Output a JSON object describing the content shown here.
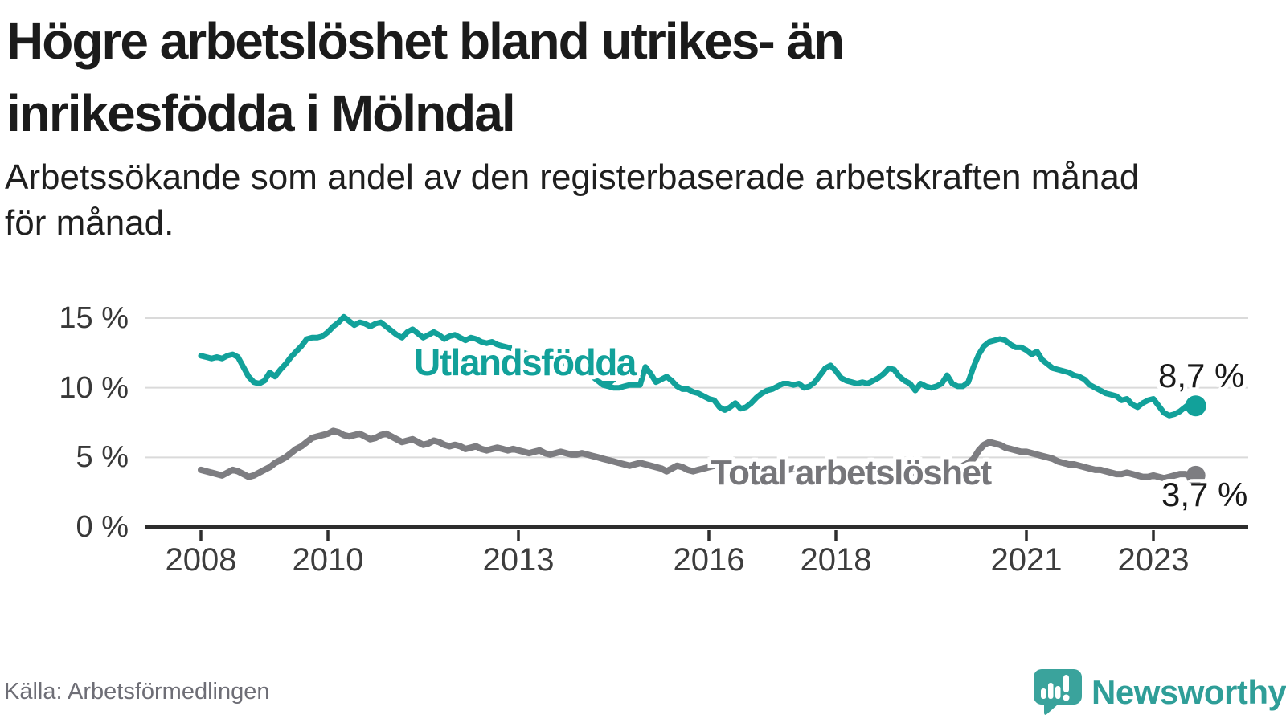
{
  "header": {
    "title_lines": [
      "Högre arbetslöshet bland utrikes- än",
      "inrikesfödda i Mölndal"
    ],
    "subtitle_lines": [
      "Arbetssökande som andel av den registerbaserade arbetskraften månad",
      "för månad."
    ]
  },
  "chart_data": {
    "type": "line",
    "title": "Högre arbetslöshet bland utrikes- än inrikesfödda i Mölndal",
    "subtitle": "Arbetssökande som andel av den registerbaserade arbetskraften månad för månad.",
    "unit": "%",
    "frequency": "monthly",
    "x_start": "2008-01",
    "x_end": "2023-09",
    "xticks": [
      2008,
      2010,
      2013,
      2016,
      2018,
      2021,
      2023
    ],
    "ylim": [
      0,
      16
    ],
    "yticks": {
      "values": [
        0,
        5,
        10,
        15
      ],
      "labels": [
        "0 %",
        "5 %",
        "10 %",
        "15 %"
      ]
    },
    "grid": "horizontal",
    "legend_position": "inline-labels",
    "colors": {
      "grid": "#dadada",
      "axis": "#2d2d2d"
    },
    "series": [
      {
        "name": "Utlandsfödda",
        "color": "#12a19a",
        "end_label": "8,7 %",
        "end_value": 8.7,
        "values": [
          12.3,
          12.2,
          12.1,
          12.2,
          12.1,
          12.3,
          12.4,
          12.2,
          11.5,
          10.8,
          10.4,
          10.3,
          10.5,
          11.1,
          10.8,
          11.3,
          11.7,
          12.2,
          12.6,
          13.0,
          13.5,
          13.6,
          13.6,
          13.7,
          14.0,
          14.4,
          14.7,
          15.1,
          14.8,
          14.5,
          14.7,
          14.6,
          14.4,
          14.6,
          14.7,
          14.4,
          14.1,
          13.8,
          13.6,
          14.0,
          14.2,
          13.9,
          13.6,
          13.8,
          14.0,
          13.8,
          13.5,
          13.7,
          13.8,
          13.6,
          13.4,
          13.6,
          13.5,
          13.3,
          13.2,
          13.3,
          13.1,
          13.0,
          12.9,
          12.8,
          12.7,
          12.5,
          12.4,
          12.3,
          12.2,
          12.1,
          12.0,
          11.9,
          11.8,
          11.7,
          11.6,
          11.5,
          11.3,
          11.0,
          10.8,
          10.5,
          10.2,
          10.1,
          10.0,
          10.0,
          10.1,
          10.2,
          10.2,
          10.2,
          11.5,
          11.0,
          10.4,
          10.6,
          10.8,
          10.5,
          10.1,
          9.9,
          9.9,
          9.7,
          9.6,
          9.4,
          9.2,
          9.1,
          8.6,
          8.4,
          8.6,
          8.9,
          8.5,
          8.6,
          8.9,
          9.3,
          9.6,
          9.8,
          9.9,
          10.1,
          10.3,
          10.3,
          10.2,
          10.3,
          10.0,
          10.1,
          10.4,
          10.9,
          11.4,
          11.6,
          11.2,
          10.7,
          10.5,
          10.4,
          10.3,
          10.4,
          10.3,
          10.5,
          10.7,
          11.0,
          11.4,
          11.3,
          10.8,
          10.5,
          10.3,
          9.8,
          10.3,
          10.1,
          10.0,
          10.1,
          10.3,
          10.9,
          10.3,
          10.1,
          10.1,
          10.4,
          11.5,
          12.4,
          13.0,
          13.3,
          13.4,
          13.5,
          13.4,
          13.1,
          12.9,
          12.9,
          12.7,
          12.4,
          12.6,
          12.0,
          11.7,
          11.4,
          11.3,
          11.2,
          11.1,
          10.9,
          10.8,
          10.6,
          10.2,
          10.0,
          9.8,
          9.6,
          9.5,
          9.4,
          9.1,
          9.2,
          8.8,
          8.6,
          8.9,
          9.1,
          9.2,
          8.7,
          8.2,
          8.0,
          8.1,
          8.3,
          8.6,
          8.9,
          8.7
        ]
      },
      {
        "name": "Total arbetslöshet",
        "color": "#7d7d81",
        "end_label": "3,7 %",
        "end_value": 3.7,
        "values": [
          4.1,
          4.0,
          3.9,
          3.8,
          3.7,
          3.9,
          4.1,
          4.0,
          3.8,
          3.6,
          3.7,
          3.9,
          4.1,
          4.3,
          4.6,
          4.8,
          5.0,
          5.3,
          5.6,
          5.8,
          6.1,
          6.4,
          6.5,
          6.6,
          6.7,
          6.9,
          6.8,
          6.6,
          6.5,
          6.6,
          6.7,
          6.5,
          6.3,
          6.4,
          6.6,
          6.7,
          6.5,
          6.3,
          6.1,
          6.2,
          6.3,
          6.1,
          5.9,
          6.0,
          6.2,
          6.1,
          5.9,
          5.8,
          5.9,
          5.8,
          5.6,
          5.7,
          5.8,
          5.6,
          5.5,
          5.6,
          5.7,
          5.6,
          5.5,
          5.6,
          5.5,
          5.4,
          5.3,
          5.4,
          5.5,
          5.3,
          5.2,
          5.3,
          5.4,
          5.3,
          5.2,
          5.2,
          5.3,
          5.2,
          5.1,
          5.0,
          4.9,
          4.8,
          4.7,
          4.6,
          4.5,
          4.4,
          4.5,
          4.6,
          4.5,
          4.4,
          4.3,
          4.2,
          4.0,
          4.2,
          4.4,
          4.3,
          4.1,
          4.0,
          4.1,
          4.2,
          4.3,
          4.4,
          4.3,
          4.2,
          4.1,
          4.2,
          4.3,
          4.2,
          4.1,
          4.0,
          4.1,
          4.2,
          4.2,
          4.1,
          4.0,
          4.1,
          4.2,
          4.1,
          4.0,
          4.1,
          4.2,
          4.1,
          4.0,
          4.0,
          3.9,
          3.8,
          3.9,
          4.0,
          3.9,
          3.8,
          3.9,
          4.0,
          3.9,
          3.8,
          3.9,
          4.0,
          4.0,
          4.1,
          4.0,
          3.9,
          4.0,
          4.1,
          4.2,
          4.1,
          4.0,
          4.1,
          4.2,
          4.3,
          4.4,
          4.6,
          4.9,
          5.5,
          5.9,
          6.1,
          6.0,
          5.9,
          5.7,
          5.6,
          5.5,
          5.4,
          5.4,
          5.3,
          5.2,
          5.1,
          5.0,
          4.9,
          4.7,
          4.6,
          4.5,
          4.5,
          4.4,
          4.3,
          4.2,
          4.1,
          4.1,
          4.0,
          3.9,
          3.8,
          3.8,
          3.9,
          3.8,
          3.7,
          3.6,
          3.6,
          3.7,
          3.6,
          3.5,
          3.6,
          3.7,
          3.8,
          3.8,
          3.7,
          3.7
        ]
      }
    ]
  },
  "footer": {
    "source": "Källa: Arbetsförmedlingen",
    "brand": "Newsworthy",
    "logo_color": "#3aa39c",
    "wordmark_color": "#2f9e98"
  }
}
